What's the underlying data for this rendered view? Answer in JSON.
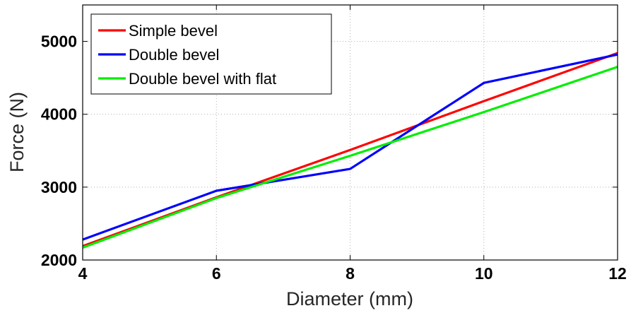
{
  "chart_data": {
    "type": "line",
    "title": "",
    "xlabel": "Diameter (mm)",
    "ylabel": "Force (N)",
    "xlim": [
      4,
      12
    ],
    "ylim": [
      2000,
      5500
    ],
    "xticks": [
      "4",
      "6",
      "8",
      "10",
      "12"
    ],
    "yticks": [
      "2000",
      "3000",
      "4000",
      "5000"
    ],
    "grid": true,
    "legend_position": "top-left",
    "x": [
      4,
      6,
      8,
      10,
      12
    ],
    "series": [
      {
        "name": "Simple bevel",
        "color": "#ff0000",
        "values": [
          2190,
          2860,
          3510,
          4180,
          4840
        ]
      },
      {
        "name": "Double bevel",
        "color": "#0000ff",
        "values": [
          2280,
          2950,
          3250,
          4430,
          4820
        ]
      },
      {
        "name": "Double bevel with flat",
        "color": "#00ee00",
        "values": [
          2170,
          2850,
          3430,
          4030,
          4650
        ]
      }
    ]
  }
}
